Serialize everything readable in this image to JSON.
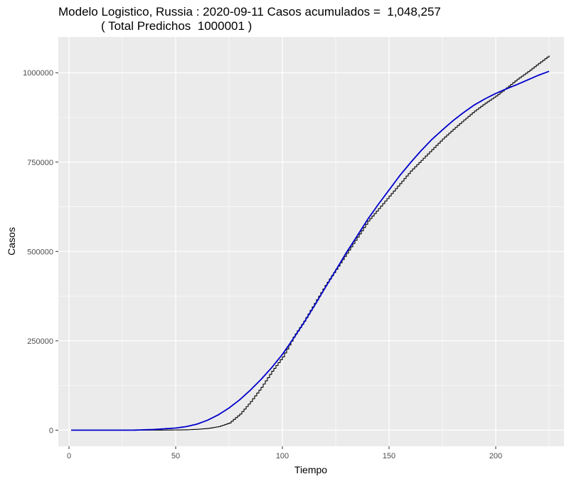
{
  "chart_data": {
    "type": "line",
    "title": "Modelo Logistico, Russia : 2020-09-11 Casos acumulados =  1,048,257",
    "subtitle": "( Total Predichos  1000001 )",
    "xlabel": "Tiempo",
    "ylabel": "Casos",
    "xlim": [
      -5,
      232
    ],
    "ylim": [
      -45000,
      1100000
    ],
    "x_ticks": [
      0,
      50,
      100,
      150,
      200
    ],
    "x_tick_labels": [
      "0",
      "50",
      "100",
      "150",
      "200"
    ],
    "y_ticks": [
      0,
      250000,
      500000,
      750000,
      1000000
    ],
    "y_tick_labels": [
      "0",
      "250000",
      "500000",
      "750000",
      "1000000"
    ],
    "grid": true,
    "background": "#EBEBEB",
    "series": [
      {
        "name": "Casos acumulados",
        "style": "step",
        "color": "#000000",
        "x": [
          1,
          10,
          20,
          30,
          40,
          50,
          55,
          60,
          65,
          70,
          75,
          80,
          85,
          90,
          95,
          100,
          105,
          110,
          115,
          120,
          125,
          130,
          135,
          140,
          145,
          150,
          155,
          160,
          165,
          170,
          175,
          180,
          185,
          190,
          195,
          200,
          205,
          210,
          215,
          220,
          225
        ],
        "values": [
          0,
          0,
          0,
          0,
          100,
          600,
          1000,
          2500,
          5000,
          10000,
          20000,
          45000,
          80000,
          120000,
          165000,
          205000,
          260000,
          305000,
          355000,
          405000,
          450000,
          495000,
          540000,
          585000,
          620000,
          655000,
          690000,
          725000,
          755000,
          785000,
          815000,
          842000,
          868000,
          893000,
          915000,
          935000,
          958000,
          982000,
          1003000,
          1026000,
          1048257
        ]
      },
      {
        "name": "Modelo logistico",
        "style": "line",
        "color": "#0000CC",
        "x": [
          1,
          10,
          20,
          30,
          40,
          50,
          55,
          60,
          65,
          70,
          75,
          80,
          85,
          90,
          95,
          100,
          105,
          110,
          115,
          120,
          125,
          130,
          135,
          140,
          145,
          150,
          155,
          160,
          165,
          170,
          175,
          180,
          185,
          190,
          195,
          200,
          205,
          210,
          215,
          220,
          225
        ],
        "values": [
          0,
          0,
          0,
          0,
          2000,
          6000,
          10000,
          17000,
          28000,
          43000,
          62000,
          85000,
          112000,
          142000,
          175000,
          212000,
          255000,
          300000,
          348000,
          398000,
          447000,
          497000,
          543000,
          590000,
          632000,
          672000,
          712000,
          748000,
          782000,
          813000,
          840000,
          866000,
          889000,
          910000,
          927000,
          942000,
          955000,
          967000,
          980000,
          993000,
          1004000
        ]
      }
    ]
  }
}
